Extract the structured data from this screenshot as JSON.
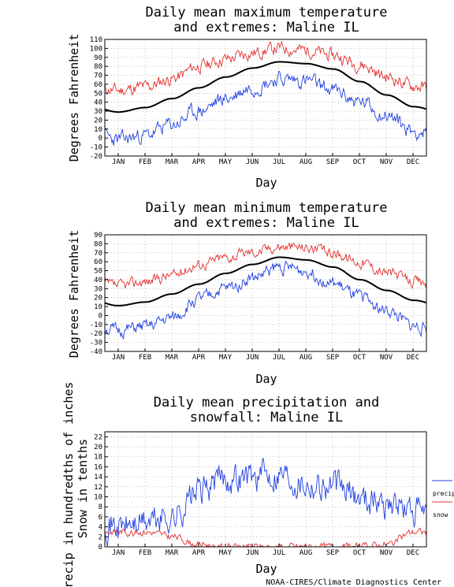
{
  "chart_data": [
    {
      "type": "line",
      "title": "Daily mean maximum temperature\nand extremes: Maline IL",
      "xlabel": "Day",
      "ylabel": "Degrees Fahrenheit",
      "xticks": [
        "JAN",
        "FEB",
        "MAR",
        "APR",
        "MAY",
        "JUN",
        "JUL",
        "AUG",
        "SEP",
        "OCT",
        "NOV",
        "DEC"
      ],
      "ylim": [
        -20,
        110
      ],
      "yticks": [
        -20,
        -10,
        0,
        10,
        20,
        30,
        40,
        50,
        60,
        70,
        80,
        90,
        100,
        110
      ],
      "grid": true,
      "series": [
        {
          "role": "record-high",
          "color": "#e03030",
          "months": [
            53,
            57,
            66,
            80,
            88,
            95,
            100,
            98,
            92,
            82,
            68,
            58
          ],
          "noise": 6,
          "seed": 11
        },
        {
          "role": "mean",
          "color": "#000000",
          "months": [
            29,
            34,
            44,
            56,
            68,
            78,
            85,
            83,
            77,
            63,
            48,
            35
          ],
          "noise": 0,
          "seed": 0
        },
        {
          "role": "record-low",
          "color": "#2040e0",
          "months": [
            -2,
            3,
            15,
            30,
            44,
            57,
            66,
            64,
            53,
            40,
            25,
            8
          ],
          "noise": 7,
          "seed": 23
        }
      ]
    },
    {
      "type": "line",
      "title": "Daily mean minimum temperature\nand extremes: Maline IL",
      "xlabel": "Day",
      "ylabel": "Degrees Fahrenheit",
      "xticks": [
        "JAN",
        "FEB",
        "MAR",
        "APR",
        "MAY",
        "JUN",
        "JUL",
        "AUG",
        "SEP",
        "OCT",
        "NOV",
        "DEC"
      ],
      "ylim": [
        -40,
        90
      ],
      "yticks": [
        -40,
        -30,
        -20,
        -10,
        0,
        10,
        20,
        30,
        40,
        50,
        60,
        70,
        80,
        90
      ],
      "grid": true,
      "series": [
        {
          "role": "record-high",
          "color": "#e03030",
          "months": [
            33,
            38,
            45,
            57,
            65,
            71,
            77,
            76,
            70,
            60,
            48,
            38
          ],
          "noise": 5,
          "seed": 37
        },
        {
          "role": "mean",
          "color": "#000000",
          "months": [
            11,
            15,
            24,
            35,
            47,
            57,
            65,
            62,
            54,
            40,
            28,
            17
          ],
          "noise": 0,
          "seed": 0
        },
        {
          "role": "record-low",
          "color": "#2040e0",
          "months": [
            -17,
            -13,
            -3,
            18,
            30,
            42,
            54,
            50,
            35,
            20,
            5,
            -12
          ],
          "noise": 6,
          "seed": 51
        }
      ]
    },
    {
      "type": "line",
      "title": "Daily mean precipitation and\nsnowfall: Maline IL",
      "xlabel": "Day",
      "ylabel": "Precip in hundredths of inches\nSnow in tenths",
      "xticks": [
        "JAN",
        "FEB",
        "MAR",
        "APR",
        "MAY",
        "JUN",
        "JUL",
        "AUG",
        "SEP",
        "OCT",
        "NOV",
        "DEC"
      ],
      "ylim": [
        0,
        23
      ],
      "yticks": [
        0,
        2,
        4,
        6,
        8,
        10,
        12,
        14,
        16,
        18,
        20,
        22
      ],
      "grid": true,
      "legend": {
        "placement": "right",
        "entries": [
          "precip",
          "snow"
        ]
      },
      "series": [
        {
          "name": "precip",
          "color": "#2040e0",
          "months": [
            4,
            5,
            6,
            11,
            14,
            14,
            15,
            13,
            12,
            10,
            9,
            7
          ],
          "noise": 2.5,
          "seed": 71
        },
        {
          "name": "snow",
          "color": "#e03030",
          "months": [
            3,
            3,
            2,
            0.5,
            0,
            0,
            0,
            0,
            0,
            0,
            0.5,
            3
          ],
          "noise": 0.6,
          "seed": 83
        }
      ]
    }
  ],
  "footer": "NOAA-CIRES/Climate Diagnostics Center"
}
